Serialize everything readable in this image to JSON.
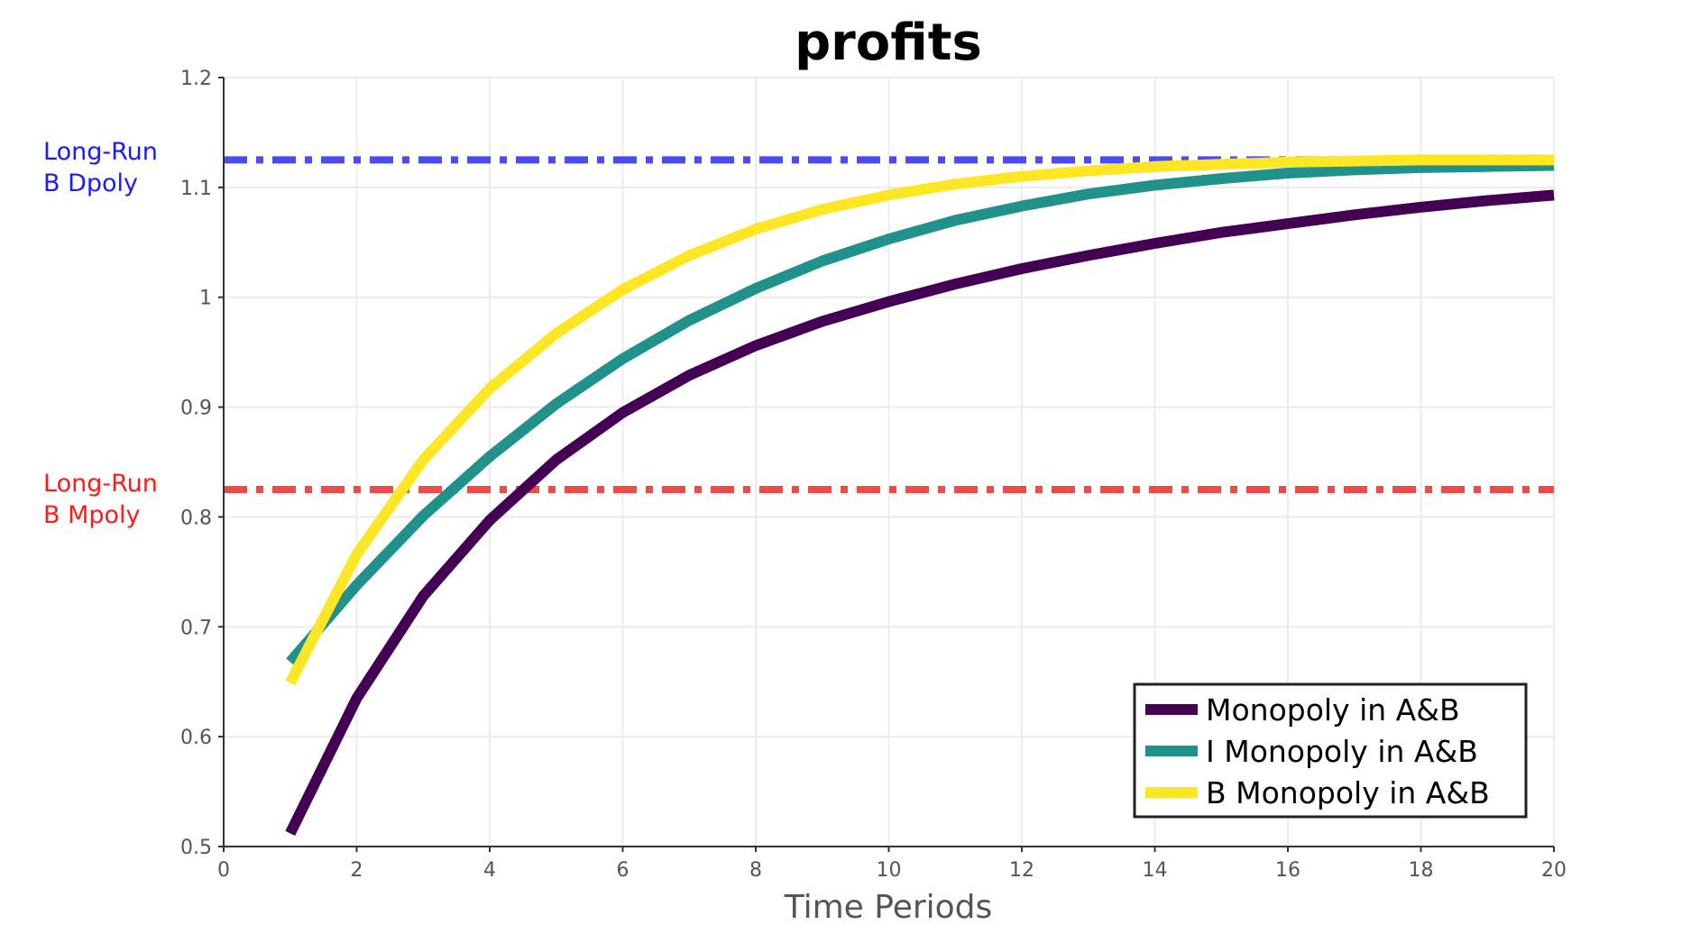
{
  "chart_data": {
    "type": "line",
    "title": "profits",
    "xlabel": "Time Periods",
    "ylabel": "",
    "xlim": [
      0,
      20
    ],
    "ylim": [
      0.5,
      1.2
    ],
    "x_ticks": [
      0,
      2,
      4,
      6,
      8,
      10,
      12,
      14,
      16,
      18,
      20
    ],
    "y_ticks": [
      0.5,
      0.6,
      0.7,
      0.8,
      0.9,
      1,
      1.1,
      1.2
    ],
    "x_tick_labels": [
      "0",
      "2",
      "4",
      "6",
      "8",
      "10",
      "12",
      "14",
      "16",
      "18",
      "20"
    ],
    "y_tick_labels": [
      "0.5",
      "0.6",
      "0.7",
      "0.8",
      "0.9",
      "1",
      "1.1",
      "1.2"
    ],
    "grid": true,
    "legend_position": "bottom-right",
    "x": [
      1,
      2,
      3,
      4,
      5,
      6,
      7,
      8,
      9,
      10,
      11,
      12,
      13,
      14,
      15,
      16,
      17,
      18,
      19,
      20
    ],
    "series": [
      {
        "name": "Monopoly in A&B",
        "color": "#440154",
        "values": [
          0.512,
          0.635,
          0.728,
          0.797,
          0.852,
          0.895,
          0.929,
          0.956,
          0.978,
          0.996,
          1.012,
          1.026,
          1.038,
          1.049,
          1.059,
          1.067,
          1.075,
          1.082,
          1.088,
          1.093
        ]
      },
      {
        "name": "I Monopoly in A&B",
        "color": "#21918c",
        "values": [
          0.668,
          0.738,
          0.801,
          0.855,
          0.903,
          0.944,
          0.979,
          1.008,
          1.033,
          1.053,
          1.07,
          1.083,
          1.094,
          1.102,
          1.108,
          1.113,
          1.116,
          1.118,
          1.119,
          1.12
        ]
      },
      {
        "name": "B Monopoly in A&B",
        "color": "#fde725",
        "values": [
          0.649,
          0.766,
          0.852,
          0.917,
          0.967,
          1.007,
          1.038,
          1.062,
          1.08,
          1.093,
          1.103,
          1.11,
          1.115,
          1.119,
          1.121,
          1.123,
          1.124,
          1.125,
          1.125,
          1.125
        ]
      }
    ],
    "reference_lines": [
      {
        "label_line1": "Long-Run",
        "label_line2": "B Dpoly",
        "value": 1.125,
        "color": "#4b4bf5",
        "label_color": "#1a1aff"
      },
      {
        "label_line1": "Long-Run",
        "label_line2": "B Mpoly",
        "value": 0.825,
        "color": "#f04b4b",
        "label_color": "#ff1a1a"
      }
    ]
  }
}
